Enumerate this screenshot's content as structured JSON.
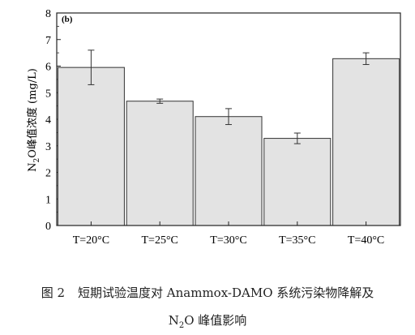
{
  "chart_data": {
    "type": "bar",
    "panel_label": "(b)",
    "categories": [
      "T=20°C",
      "T=25°C",
      "T=30°C",
      "T=35°C",
      "T=40°C"
    ],
    "values": [
      5.95,
      4.68,
      4.1,
      3.28,
      6.28
    ],
    "errors": [
      0.65,
      0.08,
      0.3,
      0.2,
      0.22
    ],
    "ylabel_parts": [
      "N",
      "2",
      "O峰值浓度 (mg/L)"
    ],
    "ylim": [
      0,
      8
    ],
    "yticks": [
      "0",
      "1",
      "2",
      "3",
      "4",
      "5",
      "6",
      "7",
      "8"
    ],
    "bar_color": "#e3e3e3",
    "grid": false
  },
  "caption": {
    "figure_no": "图 2",
    "line1": "短期试验温度对 Anammox-DAMO 系统污染物降解及",
    "line2_n": "N",
    "line2_sub": "2",
    "line2_rest": "O 峰值影响"
  }
}
